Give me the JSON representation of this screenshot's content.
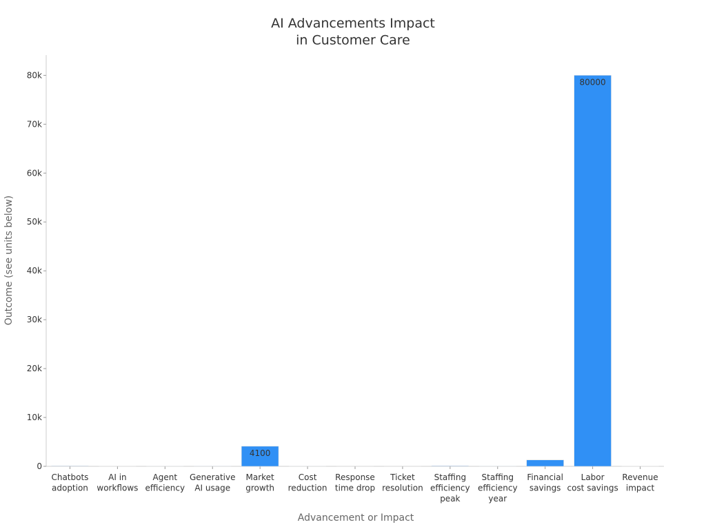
{
  "chart_data": {
    "type": "bar",
    "title": "AI Advancements Impact\nin Customer Care",
    "x_label": "Advancement or Impact",
    "y_label": "Outcome (see units below)",
    "categories": [
      "Chatbots\nadoption",
      "AI in\nworkflows",
      "Agent\nefficiency",
      "Generative\nAI usage",
      "Market\ngrowth",
      "Cost\nreduction",
      "Response\ntime drop",
      "Ticket\nresolution",
      "Staffing\nefficiency\npeak",
      "Staffing\nefficiency\nyear",
      "Financial\nsavings",
      "Labor\ncost savings",
      "Revenue\nimpact"
    ],
    "values": [
      80,
      40,
      30,
      20,
      4100,
      30,
      50,
      50,
      90,
      25,
      1300,
      80000,
      35
    ],
    "color": "#3090f5",
    "ylim": [
      0,
      84000
    ],
    "yticks": [
      0,
      {
        "value": 10000,
        "label": "10k"
      },
      {
        "value": 20000,
        "label": "20k"
      },
      {
        "value": 30000,
        "label": "30k"
      },
      {
        "value": 40000,
        "label": "40k"
      },
      {
        "value": 50000,
        "label": "50k"
      },
      {
        "value": 60000,
        "label": "60k"
      },
      {
        "value": 70000,
        "label": "70k"
      },
      {
        "value": 80000,
        "label": "80k"
      }
    ],
    "grid": false
  }
}
